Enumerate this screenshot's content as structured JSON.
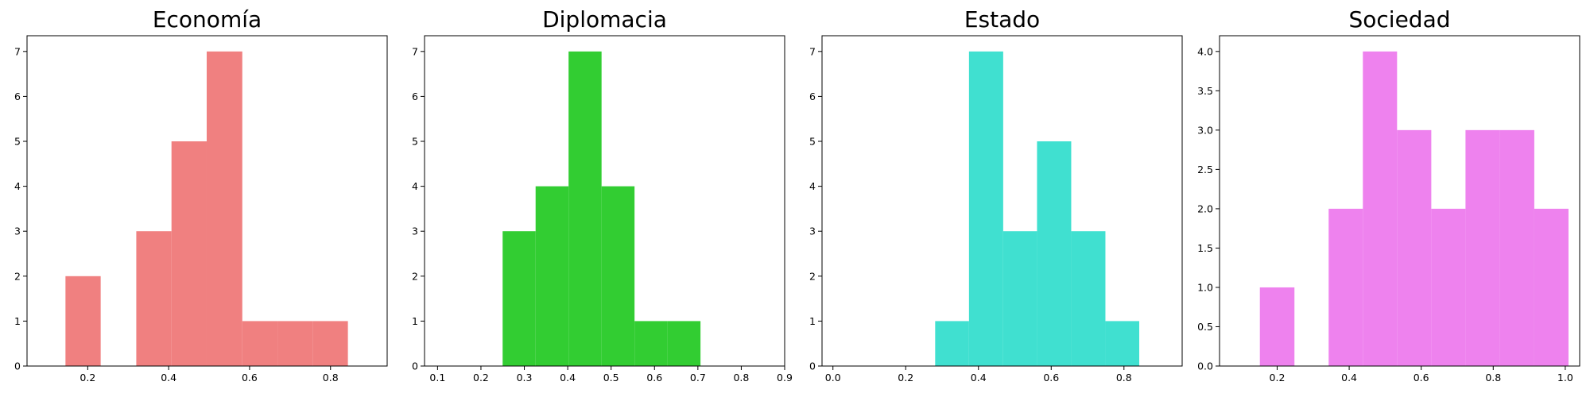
{
  "chart_data": [
    {
      "type": "bar",
      "title": "Economía",
      "color": "#f08080",
      "xlim": [
        0.05,
        0.94
      ],
      "ylim": [
        0,
        7.35
      ],
      "xticks": [
        "0.2",
        "0.4",
        "0.6",
        "0.8"
      ],
      "yticks": [
        "0",
        "1",
        "2",
        "3",
        "4",
        "5",
        "6",
        "7"
      ],
      "bins": [
        {
          "x0": 0.145,
          "x1": 0.232,
          "count": 2
        },
        {
          "x0": 0.232,
          "x1": 0.32,
          "count": 0
        },
        {
          "x0": 0.32,
          "x1": 0.407,
          "count": 3
        },
        {
          "x0": 0.407,
          "x1": 0.494,
          "count": 5
        },
        {
          "x0": 0.494,
          "x1": 0.582,
          "count": 7
        },
        {
          "x0": 0.582,
          "x1": 0.669,
          "count": 1
        },
        {
          "x0": 0.669,
          "x1": 0.756,
          "count": 1
        },
        {
          "x0": 0.756,
          "x1": 0.843,
          "count": 1
        }
      ]
    },
    {
      "type": "bar",
      "title": "Diplomacia",
      "color": "#32cd32",
      "xlim": [
        0.07,
        0.9
      ],
      "ylim": [
        0,
        7.35
      ],
      "xticks": [
        "0.1",
        "0.2",
        "0.3",
        "0.4",
        "0.5",
        "0.6",
        "0.7",
        "0.8",
        "0.9"
      ],
      "yticks": [
        "0",
        "1",
        "2",
        "3",
        "4",
        "5",
        "6",
        "7"
      ],
      "bins": [
        {
          "x0": 0.25,
          "x1": 0.326,
          "count": 3
        },
        {
          "x0": 0.326,
          "x1": 0.402,
          "count": 4
        },
        {
          "x0": 0.402,
          "x1": 0.478,
          "count": 7
        },
        {
          "x0": 0.478,
          "x1": 0.554,
          "count": 4
        },
        {
          "x0": 0.554,
          "x1": 0.63,
          "count": 1
        },
        {
          "x0": 0.63,
          "x1": 0.706,
          "count": 1
        }
      ]
    },
    {
      "type": "bar",
      "title": "Estado",
      "color": "#40e0d0",
      "xlim": [
        -0.03,
        0.96
      ],
      "ylim": [
        0,
        7.35
      ],
      "xticks": [
        "0.0",
        "0.2",
        "0.4",
        "0.6",
        "0.8"
      ],
      "yticks": [
        "0",
        "1",
        "2",
        "3",
        "4",
        "5",
        "6",
        "7"
      ],
      "bins": [
        {
          "x0": 0.281,
          "x1": 0.374,
          "count": 1
        },
        {
          "x0": 0.374,
          "x1": 0.468,
          "count": 7
        },
        {
          "x0": 0.468,
          "x1": 0.561,
          "count": 3
        },
        {
          "x0": 0.561,
          "x1": 0.655,
          "count": 5
        },
        {
          "x0": 0.655,
          "x1": 0.749,
          "count": 3
        },
        {
          "x0": 0.749,
          "x1": 0.842,
          "count": 1
        }
      ]
    },
    {
      "type": "bar",
      "title": "Sociedad",
      "color": "#ee82ee",
      "xlim": [
        0.04,
        1.04
      ],
      "ylim": [
        0,
        4.2
      ],
      "xticks": [
        "0.2",
        "0.4",
        "0.6",
        "0.8",
        "1.0"
      ],
      "yticks": [
        "0.0",
        "0.5",
        "1.0",
        "1.5",
        "2.0",
        "2.5",
        "3.0",
        "3.5",
        "4.0"
      ],
      "bins": [
        {
          "x0": 0.152,
          "x1": 0.248,
          "count": 1
        },
        {
          "x0": 0.248,
          "x1": 0.343,
          "count": 0
        },
        {
          "x0": 0.343,
          "x1": 0.438,
          "count": 2
        },
        {
          "x0": 0.438,
          "x1": 0.533,
          "count": 4
        },
        {
          "x0": 0.533,
          "x1": 0.628,
          "count": 3
        },
        {
          "x0": 0.628,
          "x1": 0.723,
          "count": 2
        },
        {
          "x0": 0.723,
          "x1": 0.819,
          "count": 3
        },
        {
          "x0": 0.819,
          "x1": 0.914,
          "count": 3
        },
        {
          "x0": 0.914,
          "x1": 1.009,
          "count": 2
        }
      ]
    }
  ]
}
